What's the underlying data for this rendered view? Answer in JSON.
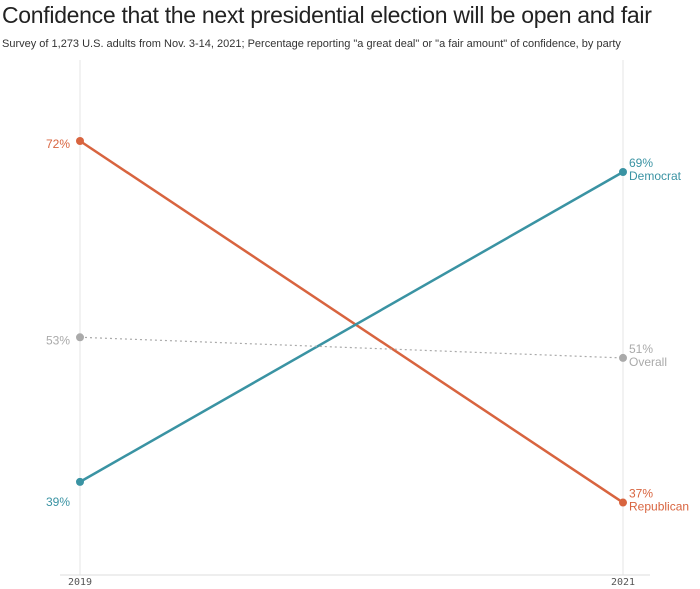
{
  "chart_data": {
    "type": "line",
    "title": "Confidence that the next presidential election will be open and fair",
    "subtitle": "Survey of 1,273 U.S. adults from Nov. 3-14, 2021; Percentage reporting \"a great deal\" or \"a fair amount\" of confidence, by party",
    "x": [
      "2019",
      "2021"
    ],
    "series": [
      {
        "name": "Republican",
        "values": [
          72,
          37
        ],
        "labels": [
          "72%",
          "37%"
        ],
        "color": "#d8643f",
        "style": "solid"
      },
      {
        "name": "Democrat",
        "values": [
          39,
          69
        ],
        "labels": [
          "39%",
          "69%"
        ],
        "color": "#3a93a3",
        "style": "solid"
      },
      {
        "name": "Overall",
        "values": [
          53,
          51
        ],
        "labels": [
          "53%",
          "51%"
        ],
        "color": "#aaaaaa",
        "style": "dotted"
      }
    ],
    "ylim": [
      28,
      83
    ],
    "grid": "vertical lines at each year"
  }
}
